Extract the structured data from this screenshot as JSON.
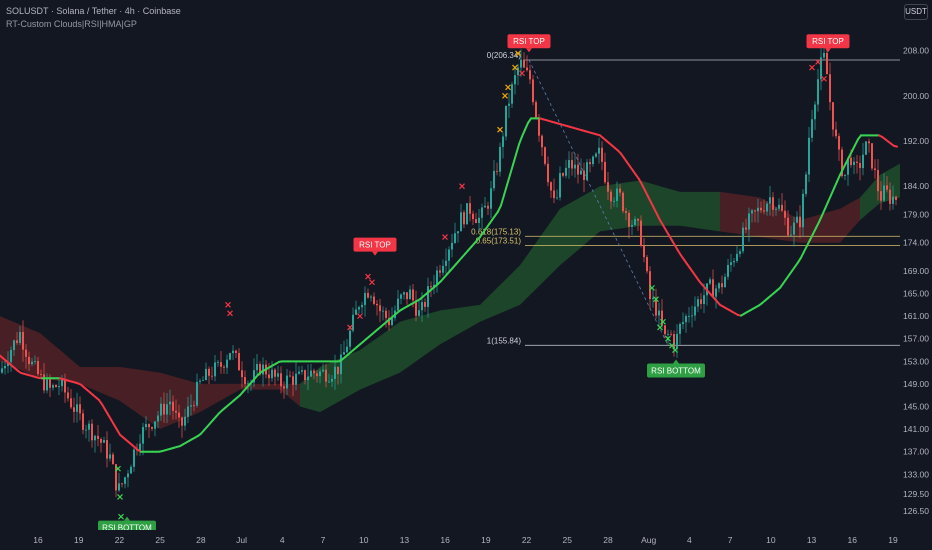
{
  "header": {
    "title": "SOLUSDT · Solana / Tether · 4h · Coinbase",
    "indicator": "RT-Custom Clouds|RSI|HMA|GP",
    "currency": "USDT"
  },
  "colors": {
    "background": "#131722",
    "bull_candle": "#26a69a",
    "bear_candle": "#ef5350",
    "hma_up": "#39d353",
    "hma_down": "#f23645",
    "cloud_bull": "#1e4d2b",
    "cloud_bear": "#5a2326",
    "rsi_top": "#f23645",
    "rsi_bottom": "#2ea043",
    "fib": "#d9c36a"
  },
  "chart_data": {
    "type": "candlestick",
    "ylim": [
      123.5,
      212
    ],
    "y_ticks": [
      "208.00",
      "200.00",
      "192.00",
      "184.00",
      "179.00",
      "174.00",
      "169.00",
      "165.00",
      "161.00",
      "157.00",
      "153.00",
      "149.00",
      "145.00",
      "141.00",
      "137.00",
      "133.00",
      "129.50",
      "126.50"
    ],
    "x_ticks": [
      "16",
      "19",
      "22",
      "25",
      "28",
      "Jul",
      "4",
      "7",
      "10",
      "13",
      "16",
      "19",
      "22",
      "25",
      "28",
      "Aug",
      "4",
      "7",
      "10",
      "13",
      "16",
      "19"
    ],
    "price_path": [
      [
        0,
        151
      ],
      [
        10,
        155
      ],
      [
        20,
        158
      ],
      [
        30,
        153
      ],
      [
        40,
        150
      ],
      [
        50,
        148
      ],
      [
        60,
        149
      ],
      [
        70,
        146
      ],
      [
        80,
        143
      ],
      [
        90,
        141
      ],
      [
        100,
        139
      ],
      [
        110,
        136
      ],
      [
        118,
        130
      ],
      [
        124,
        132
      ],
      [
        130,
        135
      ],
      [
        140,
        140
      ],
      [
        150,
        142
      ],
      [
        160,
        144
      ],
      [
        170,
        146
      ],
      [
        180,
        141
      ],
      [
        190,
        145
      ],
      [
        200,
        149
      ],
      [
        210,
        151
      ],
      [
        220,
        152
      ],
      [
        230,
        155
      ],
      [
        240,
        152
      ],
      [
        250,
        149
      ],
      [
        260,
        152
      ],
      [
        270,
        151
      ],
      [
        280,
        149
      ],
      [
        290,
        150
      ],
      [
        300,
        150
      ],
      [
        310,
        151
      ],
      [
        320,
        151
      ],
      [
        330,
        151
      ],
      [
        340,
        152
      ],
      [
        350,
        158
      ],
      [
        360,
        164
      ],
      [
        370,
        166
      ],
      [
        380,
        162
      ],
      [
        390,
        160
      ],
      [
        400,
        164
      ],
      [
        410,
        165
      ],
      [
        420,
        161
      ],
      [
        430,
        166
      ],
      [
        440,
        170
      ],
      [
        450,
        174
      ],
      [
        460,
        178
      ],
      [
        470,
        180
      ],
      [
        480,
        178
      ],
      [
        490,
        182
      ],
      [
        500,
        190
      ],
      [
        505,
        196
      ],
      [
        510,
        200
      ],
      [
        515,
        203
      ],
      [
        520,
        206
      ],
      [
        525,
        204
      ],
      [
        530,
        203
      ],
      [
        535,
        198
      ],
      [
        540,
        193
      ],
      [
        545,
        189
      ],
      [
        550,
        184
      ],
      [
        555,
        180
      ],
      [
        560,
        185
      ],
      [
        570,
        188
      ],
      [
        580,
        186
      ],
      [
        590,
        187
      ],
      [
        600,
        190
      ],
      [
        605,
        186
      ],
      [
        610,
        183
      ],
      [
        620,
        182
      ],
      [
        630,
        178
      ],
      [
        640,
        176
      ],
      [
        650,
        164
      ],
      [
        655,
        163
      ],
      [
        660,
        160
      ],
      [
        665,
        157
      ],
      [
        670,
        158
      ],
      [
        675,
        156
      ],
      [
        680,
        159
      ],
      [
        690,
        162
      ],
      [
        700,
        164
      ],
      [
        710,
        166
      ],
      [
        720,
        166
      ],
      [
        730,
        170
      ],
      [
        740,
        174
      ],
      [
        750,
        178
      ],
      [
        760,
        180
      ],
      [
        770,
        182
      ],
      [
        780,
        180
      ],
      [
        790,
        176
      ],
      [
        800,
        178
      ],
      [
        805,
        184
      ],
      [
        810,
        195
      ],
      [
        815,
        200
      ],
      [
        820,
        205
      ],
      [
        825,
        207
      ],
      [
        830,
        199
      ],
      [
        835,
        193
      ],
      [
        840,
        188
      ],
      [
        845,
        186
      ],
      [
        850,
        190
      ],
      [
        855,
        186
      ],
      [
        860,
        188
      ],
      [
        865,
        191
      ],
      [
        870,
        190
      ],
      [
        875,
        186
      ],
      [
        880,
        182
      ],
      [
        885,
        183
      ],
      [
        890,
        182
      ],
      [
        895,
        182
      ]
    ],
    "hma": [
      [
        0,
        154
      ],
      [
        20,
        151
      ],
      [
        40,
        150
      ],
      [
        60,
        150
      ],
      [
        80,
        149
      ],
      [
        100,
        146
      ],
      [
        120,
        140
      ],
      [
        140,
        137
      ],
      [
        160,
        137
      ],
      [
        180,
        138
      ],
      [
        200,
        140
      ],
      [
        220,
        144
      ],
      [
        240,
        147
      ],
      [
        260,
        151
      ],
      [
        280,
        153
      ],
      [
        300,
        153
      ],
      [
        320,
        153
      ],
      [
        340,
        153
      ],
      [
        360,
        156
      ],
      [
        380,
        159
      ],
      [
        400,
        162
      ],
      [
        420,
        164
      ],
      [
        440,
        167
      ],
      [
        460,
        171
      ],
      [
        480,
        175
      ],
      [
        500,
        180
      ],
      [
        510,
        186
      ],
      [
        520,
        192
      ],
      [
        530,
        196
      ],
      [
        540,
        196
      ],
      [
        560,
        195
      ],
      [
        580,
        194
      ],
      [
        600,
        193
      ],
      [
        620,
        190
      ],
      [
        640,
        185
      ],
      [
        660,
        178
      ],
      [
        680,
        172
      ],
      [
        700,
        167
      ],
      [
        720,
        163
      ],
      [
        740,
        161
      ],
      [
        760,
        163
      ],
      [
        780,
        166
      ],
      [
        800,
        171
      ],
      [
        820,
        178
      ],
      [
        840,
        186
      ],
      [
        860,
        193
      ],
      [
        880,
        193
      ],
      [
        895,
        191
      ]
    ],
    "cloud": [
      [
        0,
        153,
        161
      ],
      [
        40,
        150,
        158
      ],
      [
        80,
        149,
        152
      ],
      [
        120,
        146,
        152
      ],
      [
        160,
        141,
        151
      ],
      [
        200,
        144,
        149
      ],
      [
        240,
        148,
        149
      ],
      [
        280,
        148,
        149
      ],
      [
        300,
        145,
        149
      ],
      [
        320,
        144,
        152
      ],
      [
        360,
        148,
        155
      ],
      [
        400,
        151,
        160
      ],
      [
        440,
        156,
        162
      ],
      [
        480,
        160,
        163
      ],
      [
        520,
        163,
        170
      ],
      [
        560,
        170,
        180
      ],
      [
        600,
        176,
        184
      ],
      [
        640,
        177,
        185
      ],
      [
        680,
        177,
        183
      ],
      [
        720,
        176,
        183
      ],
      [
        760,
        175,
        182
      ],
      [
        800,
        174,
        178
      ],
      [
        840,
        174,
        180
      ],
      [
        860,
        178,
        182
      ],
      [
        880,
        181,
        186
      ],
      [
        900,
        182,
        188
      ]
    ],
    "cloud_bull_ranges": [
      [
        300,
        500
      ],
      [
        500,
        720
      ],
      [
        860,
        900
      ]
    ],
    "rsi_top_labels": [
      {
        "label": "RSI TOP",
        "x": 375,
        "price": 171
      },
      {
        "label": "RSI TOP",
        "x": 529,
        "price": 207
      },
      {
        "label": "RSI TOP",
        "x": 828,
        "price": 207
      }
    ],
    "rsi_bottom_labels": [
      {
        "label": "RSI BOTTOM",
        "x": 127,
        "price": 128
      },
      {
        "label": "RSI BOTTOM",
        "x": 676,
        "price": 155.8
      }
    ],
    "fib_levels": [
      {
        "text": "0(206.34)",
        "price": 206.34,
        "color": "#d1d4dc"
      },
      {
        "text": "0.618(175.13)",
        "price": 175.13,
        "color": "#d9c36a"
      },
      {
        "text": "0.65(173.51)",
        "price": 173.51,
        "color": "#d9c36a"
      },
      {
        "text": "1(155.84)",
        "price": 155.84,
        "color": "#d1d4dc"
      }
    ],
    "fib_line_start_x": 525,
    "fib_line_end_x": 900
  }
}
